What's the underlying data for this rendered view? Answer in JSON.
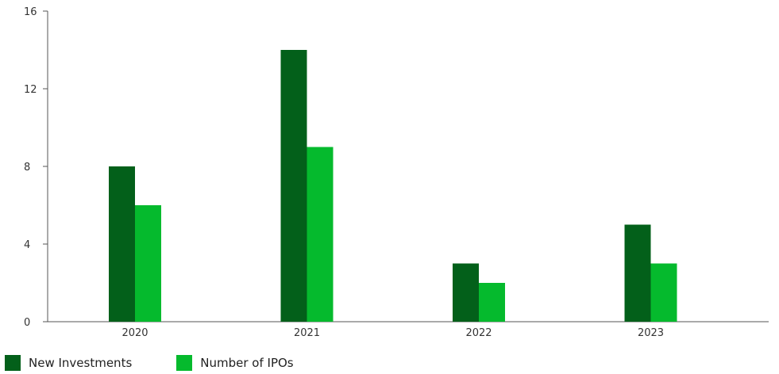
{
  "chart_data": {
    "type": "bar",
    "title": "",
    "xlabel": "",
    "ylabel": "",
    "categories": [
      "2020",
      "2021",
      "2022",
      "2023"
    ],
    "series": [
      {
        "name": "New Investments",
        "values": [
          8,
          14,
          3,
          5
        ],
        "color": "#03601A"
      },
      {
        "name": "Number of IPOs",
        "values": [
          6,
          9,
          2,
          3
        ],
        "color": "#05BA2D"
      }
    ],
    "ylim": [
      0,
      16
    ],
    "yticks": [
      "0",
      "4",
      "8",
      "12",
      "16"
    ],
    "grid": false,
    "legend_position": "bottom-left"
  }
}
